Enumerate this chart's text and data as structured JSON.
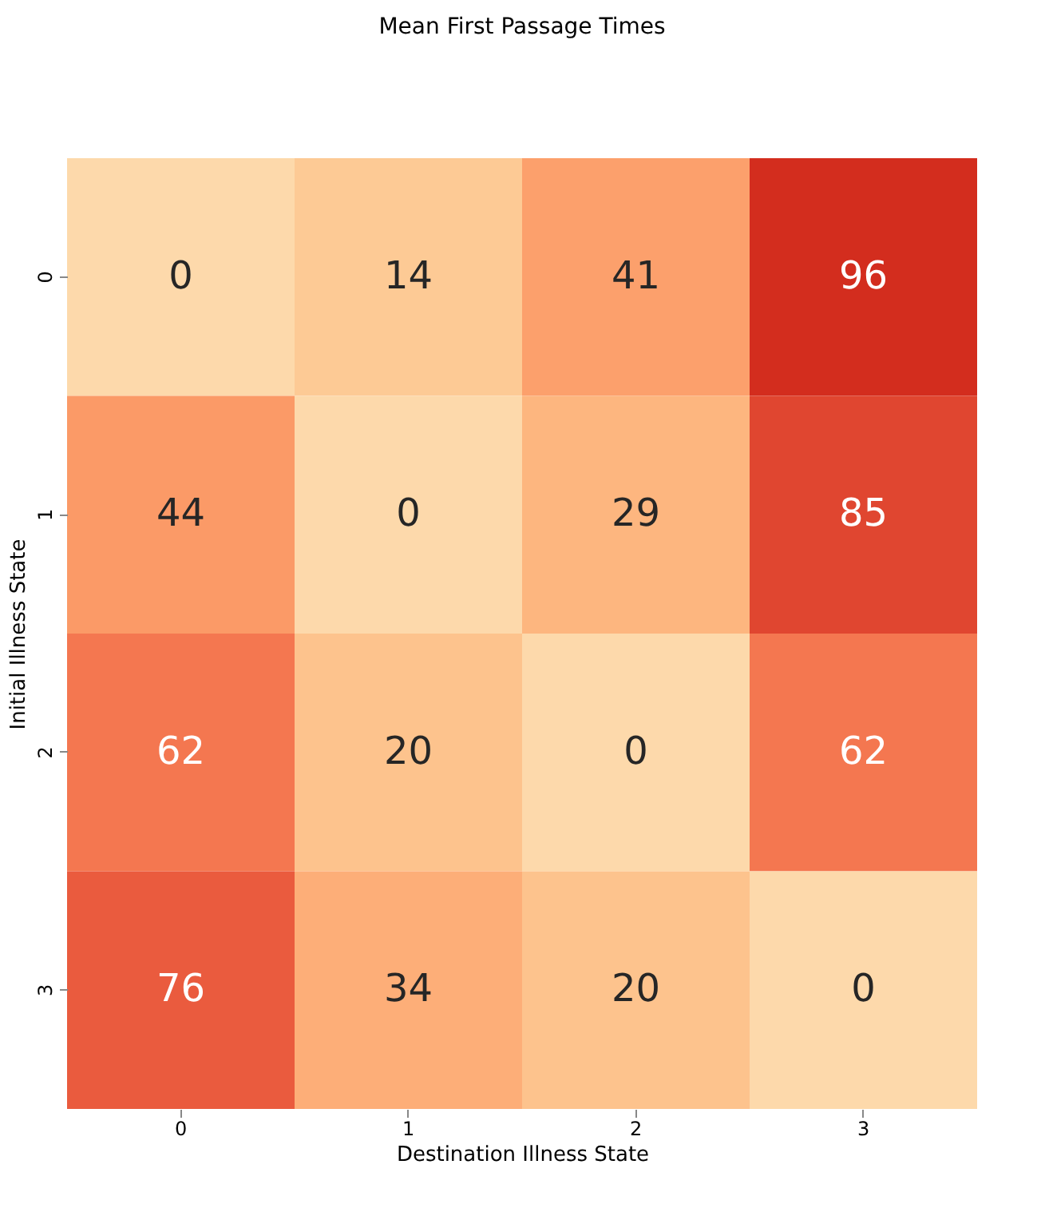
{
  "chart_data": {
    "type": "heatmap",
    "title": "Mean First Passage Times",
    "xlabel": "Destination Illness State",
    "ylabel": "Initial Illness State",
    "categories": [
      "0",
      "1",
      "2",
      "3"
    ],
    "y_categories": [
      "0",
      "1",
      "2",
      "3"
    ],
    "cells": [
      [
        0,
        14,
        41,
        96
      ],
      [
        44,
        0,
        29,
        85
      ],
      [
        62,
        20,
        0,
        62
      ],
      [
        76,
        34,
        20,
        0
      ]
    ],
    "data_labels": true
  }
}
